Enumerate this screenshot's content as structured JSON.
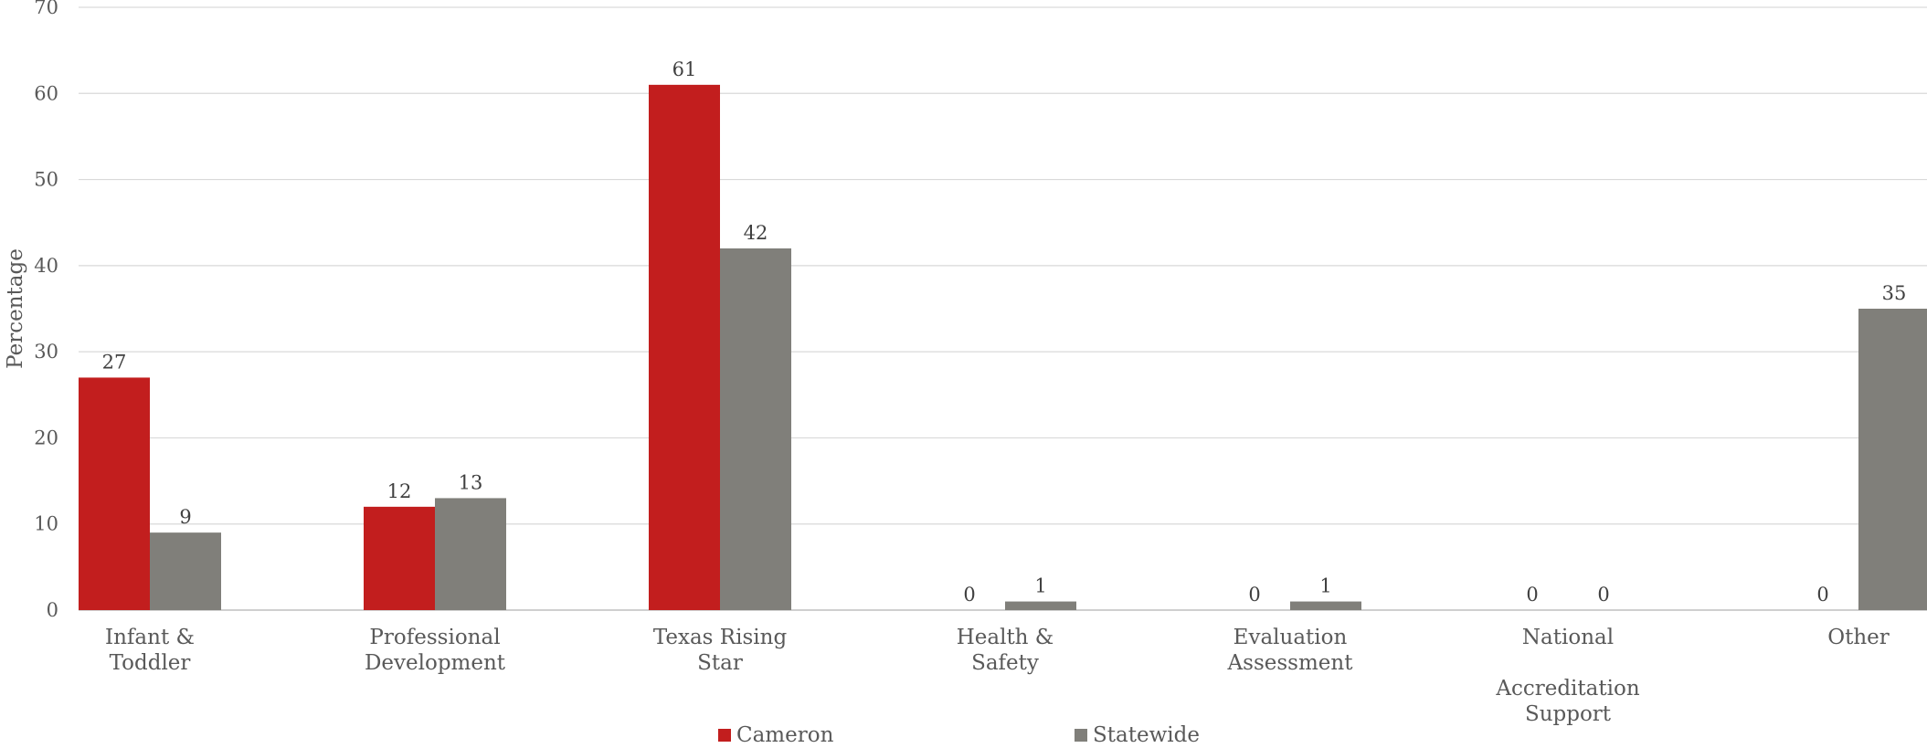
{
  "chart_data": {
    "type": "bar",
    "categories": [
      [
        "Infant &",
        "Toddler"
      ],
      [
        "Professional",
        "Development"
      ],
      [
        "Texas Rising",
        "Star"
      ],
      [
        "Health &",
        "Safety"
      ],
      [
        "Evaluation",
        "Assessment"
      ],
      [
        "National",
        "",
        "Accreditation",
        "Support"
      ],
      [
        "Other"
      ]
    ],
    "series": [
      {
        "name": "Cameron",
        "color": "#C21E1E",
        "values": [
          27,
          12,
          61,
          0,
          0,
          0,
          0
        ]
      },
      {
        "name": "Statewide",
        "color": "#807F7A",
        "values": [
          9,
          13,
          42,
          1,
          1,
          0,
          35
        ]
      }
    ],
    "ylabel": "Percentage",
    "ylim": [
      0,
      70
    ],
    "yticks": [
      0,
      10,
      20,
      30,
      40,
      50,
      60,
      70
    ],
    "grid": true,
    "legend": "bottom"
  },
  "legend": {
    "series1": "Cameron",
    "series2": "Statewide"
  }
}
